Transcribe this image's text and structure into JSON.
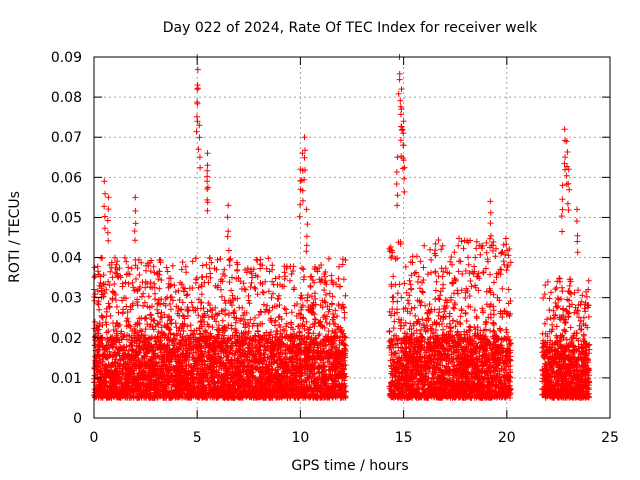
{
  "chart_data": {
    "type": "scatter",
    "title": "Day 022 of 2024, Rate Of TEC Index for receiver welk",
    "xlabel": "GPS time / hours",
    "ylabel": "ROTI / TECUs",
    "xlim": [
      0,
      25
    ],
    "ylim": [
      0,
      0.09
    ],
    "x_ticks": [
      0,
      5,
      10,
      15,
      20,
      25
    ],
    "x_tick_labels": [
      "0",
      "5",
      "10",
      "15",
      "20",
      "25"
    ],
    "y_ticks": [
      0,
      0.01,
      0.02,
      0.03,
      0.04,
      0.05,
      0.06,
      0.07,
      0.08,
      0.09
    ],
    "y_tick_labels": [
      "0",
      "0.01",
      "0.02",
      "0.03",
      "0.04",
      "0.05",
      "0.06",
      "0.07",
      "0.08",
      "0.09"
    ],
    "grid": true,
    "marker": "+",
    "color": "#ff0000",
    "series": [
      {
        "segments": [
          {
            "x": [
              0.0,
              12.2
            ],
            "typical": [
              0.005,
              0.02
            ],
            "outliers": [
              0.02,
              0.04
            ]
          },
          {
            "x": [
              14.3,
              20.2
            ],
            "typical": [
              0.005,
              0.02
            ],
            "outliers": [
              0.02,
              0.045
            ]
          },
          {
            "x": [
              21.7,
              24.0
            ],
            "typical": [
              0.005,
              0.018
            ],
            "outliers": [
              0.018,
              0.035
            ]
          }
        ],
        "spikes": [
          {
            "x": 0.5,
            "y": 0.059
          },
          {
            "x": 0.7,
            "y": 0.055
          },
          {
            "x": 2.0,
            "y": 0.055
          },
          {
            "x": 5.0,
            "y": 0.09
          },
          {
            "x": 5.0,
            "y": 0.082
          },
          {
            "x": 5.1,
            "y": 0.073
          },
          {
            "x": 5.5,
            "y": 0.066
          },
          {
            "x": 5.5,
            "y": 0.063
          },
          {
            "x": 6.5,
            "y": 0.053
          },
          {
            "x": 10.2,
            "y": 0.07
          },
          {
            "x": 10.1,
            "y": 0.066
          },
          {
            "x": 10.0,
            "y": 0.062
          },
          {
            "x": 10.3,
            "y": 0.052
          },
          {
            "x": 14.8,
            "y": 0.09
          },
          {
            "x": 14.9,
            "y": 0.082
          },
          {
            "x": 14.9,
            "y": 0.077
          },
          {
            "x": 15.0,
            "y": 0.074
          },
          {
            "x": 15.0,
            "y": 0.068
          },
          {
            "x": 14.7,
            "y": 0.065
          },
          {
            "x": 19.2,
            "y": 0.054
          },
          {
            "x": 22.8,
            "y": 0.072
          },
          {
            "x": 22.9,
            "y": 0.069
          },
          {
            "x": 23.0,
            "y": 0.062
          },
          {
            "x": 22.7,
            "y": 0.058
          },
          {
            "x": 23.4,
            "y": 0.052
          }
        ]
      }
    ]
  }
}
